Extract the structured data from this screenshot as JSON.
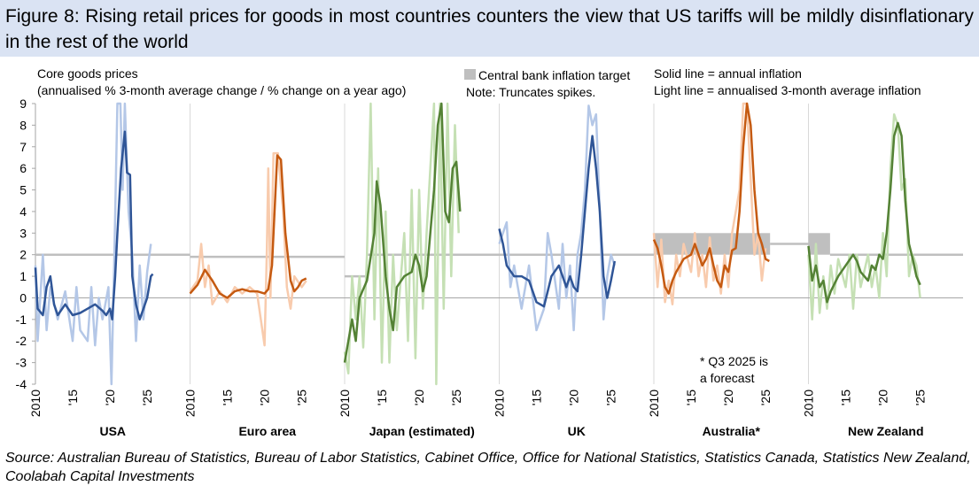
{
  "title": "Figure 8: Rising retail prices for goods in most countries counters the view that US tariffs will be mildly disinflationary in the rest of the world",
  "source": "Source: Australian Bureau of Statistics, Bureau of Labor Statistics, Cabinet Office, Office for National Statistics, Statistics Canada, Statistics New Zealand, Coolabah Capital Investments",
  "chart_data": {
    "type": "line",
    "ylabel_line1": "Core goods prices",
    "ylabel_line2": "(annualised % 3-month average change / % change on a year ago)",
    "legend": {
      "target": "Central bank inflation target",
      "note": "Note: Truncates spikes.",
      "solid": "Solid line = annual inflation",
      "light": "Light line = annualised 3-month average inflation"
    },
    "annotation": [
      "* Q3 2025 is",
      "a forecast"
    ],
    "ylim": [
      -4,
      9
    ],
    "yticks": [
      "9",
      "8",
      "7",
      "6",
      "5",
      "4",
      "3",
      "2",
      "1",
      "0",
      "-1",
      "-2",
      "-3",
      "-4"
    ],
    "xlim_per_panel": [
      2010,
      2030.75
    ],
    "xtick_years": [
      2010,
      2015,
      2020,
      2025
    ],
    "xtick_labels": [
      "2010",
      "'15",
      "'20",
      "'25"
    ],
    "colors": {
      "target": "#bfbfbf",
      "blue": "#2f5597",
      "blue_light": "#b4c7e7",
      "orange": "#c55a11",
      "orange_light": "#f8cbad",
      "green": "#548235",
      "green_light": "#c5e0b4"
    },
    "panels": [
      {
        "name": "USA",
        "color": "blue",
        "targets": [
          {
            "kind": "line",
            "x": [
              2010,
              2030.75
            ],
            "y": 2
          }
        ],
        "solid": {
          "x": [
            2010,
            2010.3,
            2011,
            2011.5,
            2012,
            2012.5,
            2013,
            2014,
            2015,
            2016,
            2017,
            2018,
            2019,
            2019.5,
            2020,
            2020.3,
            2020.7,
            2021,
            2021.5,
            2022,
            2022.3,
            2022.7,
            2023,
            2023.5,
            2024,
            2024.5,
            2025,
            2025.5,
            2025.75
          ],
          "y": [
            1.4,
            -0.5,
            -0.8,
            0.5,
            1.0,
            -0.3,
            -0.8,
            -0.3,
            -0.8,
            -0.7,
            -0.5,
            -0.3,
            -0.6,
            -0.8,
            -0.5,
            -1.0,
            1.0,
            3.0,
            6.0,
            7.7,
            5.8,
            5.7,
            1.0,
            -0.3,
            -1.0,
            -0.5,
            0.0,
            1.0,
            1.1
          ]
        },
        "light": {
          "x": [
            2010,
            2010.3,
            2011,
            2011.5,
            2012,
            2013,
            2014,
            2015,
            2015.5,
            2016,
            2017,
            2017.5,
            2018,
            2018.5,
            2019,
            2019.8,
            2020.2,
            2020.6,
            2021,
            2021.4,
            2021.7,
            2022,
            2022.5,
            2023,
            2023.5,
            2024,
            2024.5,
            2025,
            2025.5
          ],
          "y": [
            1.5,
            -2,
            2,
            -1.5,
            0.5,
            -1,
            0.3,
            -2,
            0.5,
            -1.5,
            -2,
            0.5,
            -2.2,
            0,
            -1,
            0.5,
            -4,
            2,
            9,
            9,
            5,
            9,
            4,
            2,
            -2,
            1.5,
            -1,
            1.2,
            2.5
          ]
        }
      },
      {
        "name": "Euro area",
        "color": "orange",
        "targets": [
          {
            "kind": "line",
            "x": [
              2010,
              2030.75
            ],
            "y": 1.9
          }
        ],
        "solid": {
          "x": [
            2010,
            2011,
            2012,
            2013,
            2014,
            2015,
            2016,
            2017,
            2018,
            2019,
            2020,
            2020.5,
            2021,
            2021.7,
            2022.2,
            2022.8,
            2023.5,
            2024,
            2024.5,
            2025,
            2025.6
          ],
          "y": [
            0.2,
            0.6,
            1.3,
            0.8,
            0.2,
            0,
            0.3,
            0.4,
            0.3,
            0.3,
            0.2,
            0.4,
            1.5,
            6.6,
            6.4,
            3,
            0.8,
            0.3,
            0.5,
            0.8,
            0.9
          ]
        },
        "light": {
          "x": [
            2010,
            2011,
            2011.5,
            2012,
            2012.5,
            2013,
            2014,
            2015,
            2016,
            2017,
            2018,
            2019,
            2020,
            2020.3,
            2020.5,
            2020.8,
            2021.2,
            2021.8,
            2022.5,
            2023,
            2023.5,
            2024,
            2025,
            2025.6
          ],
          "y": [
            0.3,
            0.8,
            2.5,
            0.5,
            1.5,
            -0.3,
            0.3,
            -0.2,
            0.5,
            0.2,
            0.5,
            0.2,
            -2.2,
            2,
            6,
            0,
            6.7,
            6.7,
            4,
            0.5,
            -0.5,
            1,
            0.5,
            0.8
          ]
        }
      },
      {
        "name": "Japan (estimated)",
        "color": "green",
        "targets": [
          {
            "kind": "line",
            "x": [
              2010,
              2012.9
            ],
            "y": 1
          },
          {
            "kind": "line",
            "x": [
              2012.9,
              2030.75
            ],
            "y": 2
          }
        ],
        "solid": {
          "x": [
            2010,
            2010.5,
            2011,
            2011.5,
            2012,
            2013,
            2014,
            2014.3,
            2014.8,
            2015.5,
            2016,
            2016.5,
            2017,
            2018,
            2019,
            2019.5,
            2020,
            2020.5,
            2021,
            2021.5,
            2022,
            2022.5,
            2023,
            2023.5,
            2024,
            2024.5,
            2025,
            2025.5
          ],
          "y": [
            -3,
            -2,
            -1,
            -2,
            0,
            0.8,
            3,
            5.4,
            4.3,
            1,
            -0.5,
            -1.5,
            0.5,
            1,
            1.2,
            2,
            1.5,
            0.3,
            1,
            3,
            5,
            8,
            9,
            4,
            3.5,
            6,
            6.3,
            4
          ]
        },
        "light": {
          "x": [
            2010,
            2010.5,
            2011,
            2011.5,
            2012,
            2012.5,
            2013,
            2013.5,
            2014,
            2014.5,
            2015,
            2015.5,
            2016,
            2016.5,
            2017,
            2018,
            2018.5,
            2019,
            2019.5,
            2020,
            2020.5,
            2021,
            2021.5,
            2022,
            2022.3,
            2022.8,
            2023.3,
            2023.8,
            2024.3,
            2024.8,
            2025.3
          ],
          "y": [
            -2.5,
            -3.5,
            1,
            -1,
            1,
            -2.3,
            2,
            9,
            -1,
            6,
            -3,
            4,
            -3,
            2,
            -1.5,
            3,
            -2,
            5,
            -2.8,
            5,
            -0.5,
            3,
            6,
            9,
            -4,
            9,
            -0.5,
            9,
            1,
            8,
            3
          ]
        }
      },
      {
        "name": "UK",
        "color": "blue",
        "targets": [
          {
            "kind": "line",
            "x": [
              2010,
              2030.75
            ],
            "y": 2
          }
        ],
        "solid": {
          "x": [
            2010,
            2010.5,
            2011,
            2012,
            2013,
            2014,
            2015,
            2016,
            2017,
            2018,
            2019,
            2019.5,
            2020,
            2020.5,
            2021,
            2021.5,
            2022,
            2022.5,
            2023,
            2023.5,
            2024,
            2024.5,
            2025,
            2025.5
          ],
          "y": [
            3.2,
            2.5,
            1.5,
            1.0,
            1.0,
            0.8,
            -0.2,
            -0.4,
            1,
            1.5,
            0.5,
            1,
            0.5,
            0.3,
            2,
            4,
            6,
            7.5,
            6,
            4,
            1,
            0,
            0.8,
            1.7
          ]
        },
        "light": {
          "x": [
            2010,
            2011,
            2011.5,
            2012,
            2013,
            2014,
            2015,
            2016,
            2016.5,
            2017,
            2018,
            2018.5,
            2019,
            2019.5,
            2020,
            2020.5,
            2021,
            2021.5,
            2022,
            2022.5,
            2023,
            2023.5,
            2024,
            2024.5,
            2025,
            2025.5
          ],
          "y": [
            2.5,
            3.5,
            0.5,
            1.5,
            -0.5,
            1.5,
            -1.5,
            -0.5,
            3,
            2,
            -0.5,
            2.5,
            0,
            1.5,
            -1.5,
            2,
            3,
            5,
            8.9,
            8,
            8.5,
            4,
            -1,
            1,
            2,
            1.5
          ]
        }
      },
      {
        "name": "Australia*",
        "color": "orange",
        "targets": [
          {
            "kind": "band",
            "x": [
              2010,
              2025.6
            ],
            "y": [
              2,
              3
            ]
          },
          {
            "kind": "line",
            "x": [
              2025.6,
              2030.75
            ],
            "y": 2.5
          }
        ],
        "solid": {
          "x": [
            2010,
            2010.5,
            2011,
            2011.5,
            2012,
            2012.5,
            2013,
            2014,
            2015,
            2015.5,
            2016,
            2016.5,
            2017,
            2017.5,
            2018,
            2018.5,
            2019,
            2019.5,
            2020,
            2020.5,
            2021,
            2021.5,
            2022,
            2022.5,
            2023,
            2023.5,
            2024,
            2024.5,
            2025,
            2025.5
          ],
          "y": [
            2.7,
            2.3,
            1.5,
            0.5,
            0.2,
            0.8,
            1.2,
            1.8,
            2.0,
            2.5,
            2.0,
            1.5,
            1.8,
            2.3,
            1.5,
            0.8,
            0.5,
            1.5,
            1.2,
            2.2,
            2.3,
            4,
            7,
            9,
            8,
            5,
            3,
            2.5,
            1.8,
            1.7
          ]
        },
        "light": {
          "x": [
            2010,
            2010.5,
            2011,
            2011.5,
            2012,
            2012.5,
            2013,
            2013.5,
            2014,
            2015,
            2015.5,
            2016,
            2016.5,
            2017,
            2017.5,
            2018,
            2018.5,
            2019,
            2019.5,
            2020,
            2020.5,
            2021,
            2021.5,
            2022,
            2022.5,
            2023,
            2023.5,
            2024,
            2024.5,
            2025
          ],
          "y": [
            3,
            0.5,
            2.7,
            -0.2,
            0.8,
            -0.3,
            2,
            1,
            2.5,
            1.2,
            3,
            1,
            2,
            0.5,
            2.8,
            0.8,
            1.5,
            0.2,
            2,
            0.5,
            3,
            4,
            5,
            9,
            9,
            5.5,
            2,
            3,
            0.8,
            2.3
          ]
        }
      },
      {
        "name": "New Zealand",
        "color": "green",
        "targets": [
          {
            "kind": "band",
            "x": [
              2010,
              2012.9
            ],
            "y": [
              2,
              3
            ]
          },
          {
            "kind": "line",
            "x": [
              2012.9,
              2030.75
            ],
            "y": 2
          }
        ],
        "solid": {
          "x": [
            2010,
            2010.5,
            2011,
            2011.5,
            2012,
            2012.5,
            2013,
            2014,
            2015,
            2016,
            2016.5,
            2017,
            2018,
            2018.5,
            2019,
            2019.5,
            2020,
            2020.5,
            2021,
            2021.5,
            2022,
            2022.5,
            2023,
            2023.5,
            2024,
            2024.5,
            2025
          ],
          "y": [
            2.4,
            0.8,
            1.5,
            0.5,
            0.8,
            -0.2,
            0.3,
            1,
            1.5,
            2,
            1.7,
            1.2,
            0.8,
            1.5,
            1.3,
            2,
            1.8,
            3,
            5,
            7.5,
            8.1,
            7.5,
            4.5,
            2.5,
            1.8,
            1,
            0.6
          ]
        },
        "light": {
          "x": [
            2010,
            2010.5,
            2011,
            2011.5,
            2012,
            2012.5,
            2013,
            2013.5,
            2014,
            2015,
            2015.5,
            2016,
            2016.5,
            2017,
            2018,
            2018.5,
            2019,
            2019.5,
            2020,
            2020.5,
            2021,
            2021.5,
            2022,
            2022.5,
            2023,
            2023.5,
            2024,
            2024.5,
            2025
          ],
          "y": [
            2,
            -1,
            2.5,
            -0.7,
            1,
            -0.5,
            1.5,
            0.2,
            1.8,
            0.5,
            2,
            -0.5,
            2,
            0.5,
            2,
            0.5,
            1.5,
            0,
            3,
            1,
            6,
            8.5,
            8,
            5,
            5.5,
            1,
            2,
            1.5,
            0
          ]
        }
      }
    ]
  }
}
